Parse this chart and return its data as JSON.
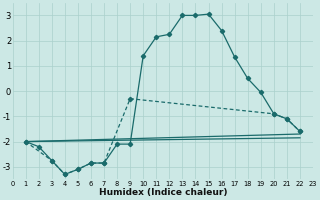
{
  "xlabel": "Humidex (Indice chaleur)",
  "background_color": "#cce8e5",
  "grid_color": "#aad0cc",
  "line_color": "#1a6b6b",
  "xlim": [
    0,
    23
  ],
  "ylim": [
    -3.5,
    3.5
  ],
  "xticks": [
    0,
    1,
    2,
    3,
    4,
    5,
    6,
    7,
    8,
    9,
    10,
    11,
    12,
    13,
    14,
    15,
    16,
    17,
    18,
    19,
    20,
    21,
    22,
    23
  ],
  "yticks": [
    -3,
    -2,
    -1,
    0,
    1,
    2,
    3
  ],
  "curve1_x": [
    1,
    2,
    3,
    4,
    5,
    6,
    7,
    8,
    9,
    10,
    11,
    12,
    13,
    14,
    15,
    16,
    17,
    18,
    19,
    20,
    21,
    22
  ],
  "curve1_y": [
    -2.0,
    -2.2,
    -2.75,
    -3.3,
    -3.1,
    -2.85,
    -2.85,
    -2.1,
    -2.1,
    1.4,
    2.15,
    2.25,
    3.0,
    3.0,
    3.05,
    2.4,
    1.35,
    0.5,
    -0.05,
    -0.9,
    -1.1,
    -1.6
  ],
  "curve2_x": [
    1,
    3,
    4,
    5,
    6,
    7,
    9,
    20,
    21,
    22
  ],
  "curve2_y": [
    -2.0,
    -2.75,
    -3.3,
    -3.1,
    -2.85,
    -2.85,
    -0.3,
    -0.9,
    -1.1,
    -1.6
  ],
  "line3_x": [
    1,
    22
  ],
  "line3_y": [
    -2.0,
    -1.7
  ],
  "line4_x": [
    1,
    22
  ],
  "line4_y": [
    -2.0,
    -1.85
  ]
}
